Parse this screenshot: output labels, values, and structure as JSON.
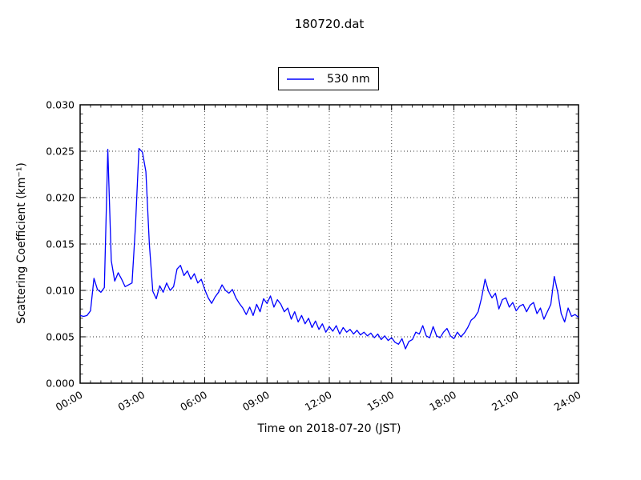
{
  "title": "180720.dat",
  "legend": {
    "label": "530 nm",
    "line_color": "#0000ff"
  },
  "axes": {
    "xlabel": "Time on 2018-07-20 (JST)",
    "ylabel": "Scattering Coefficient (km⁻¹)",
    "x_tick_labels": [
      "00:00",
      "03:00",
      "06:00",
      "09:00",
      "12:00",
      "15:00",
      "18:00",
      "21:00",
      "24:00"
    ],
    "y_tick_labels": [
      "0.000",
      "0.005",
      "0.010",
      "0.015",
      "0.020",
      "0.025",
      "0.030"
    ]
  },
  "style_colors": {
    "line": "#0000ff",
    "frame": "#000000",
    "grid": "#333333",
    "background": "#ffffff"
  },
  "chart_data": {
    "type": "line",
    "title": "180720.dat",
    "xlabel": "Time on 2018-07-20 (JST)",
    "ylabel": "Scattering Coefficient (km⁻¹)",
    "xlim_hours": [
      0,
      24
    ],
    "ylim": [
      0.0,
      0.03
    ],
    "x_ticks_hours": [
      0,
      3,
      6,
      9,
      12,
      15,
      18,
      21,
      24
    ],
    "x_minor_step_hours": 0.5,
    "y_ticks": [
      0.0,
      0.005,
      0.01,
      0.015,
      0.02,
      0.025,
      0.03
    ],
    "y_minor_step": 0.001,
    "grid": "dotted, at major ticks",
    "legend_position": "upper center, above axes",
    "series": [
      {
        "name": "530 nm",
        "color": "#0000ff",
        "x_start_hours": 0,
        "x_step_hours": 0.166667,
        "values": [
          0.0073,
          0.0072,
          0.0073,
          0.0078,
          0.0113,
          0.0101,
          0.0098,
          0.0103,
          0.0252,
          0.0132,
          0.011,
          0.0119,
          0.0112,
          0.0104,
          0.0106,
          0.0108,
          0.017,
          0.0253,
          0.0249,
          0.0228,
          0.015,
          0.0099,
          0.0091,
          0.0105,
          0.0098,
          0.0108,
          0.01,
          0.0104,
          0.0123,
          0.0127,
          0.0116,
          0.0121,
          0.0112,
          0.0118,
          0.0108,
          0.0112,
          0.0101,
          0.0092,
          0.0086,
          0.0093,
          0.0098,
          0.0106,
          0.01,
          0.0097,
          0.0101,
          0.0092,
          0.0086,
          0.0081,
          0.0074,
          0.0082,
          0.0073,
          0.0085,
          0.0077,
          0.0091,
          0.0086,
          0.0094,
          0.0082,
          0.009,
          0.0085,
          0.0077,
          0.0081,
          0.0069,
          0.0077,
          0.0066,
          0.0073,
          0.0064,
          0.007,
          0.006,
          0.0067,
          0.0058,
          0.0064,
          0.0055,
          0.0061,
          0.0056,
          0.0062,
          0.0053,
          0.006,
          0.0055,
          0.0058,
          0.0053,
          0.0057,
          0.0052,
          0.0055,
          0.0051,
          0.0054,
          0.0049,
          0.0053,
          0.0047,
          0.0051,
          0.0046,
          0.0049,
          0.0044,
          0.0042,
          0.0048,
          0.0037,
          0.0045,
          0.0047,
          0.0055,
          0.0053,
          0.0062,
          0.0051,
          0.0049,
          0.0061,
          0.0051,
          0.0049,
          0.0055,
          0.0059,
          0.0051,
          0.0048,
          0.0055,
          0.005,
          0.0054,
          0.006,
          0.0068,
          0.0071,
          0.0077,
          0.0092,
          0.0112,
          0.0099,
          0.0092,
          0.0097,
          0.008,
          0.009,
          0.0092,
          0.0082,
          0.0087,
          0.0078,
          0.0083,
          0.0085,
          0.0077,
          0.0084,
          0.0087,
          0.0075,
          0.0081,
          0.0069,
          0.0077,
          0.0085,
          0.0115,
          0.0098,
          0.0075,
          0.0066,
          0.0081,
          0.0072,
          0.0074,
          0.0071
        ]
      }
    ]
  }
}
